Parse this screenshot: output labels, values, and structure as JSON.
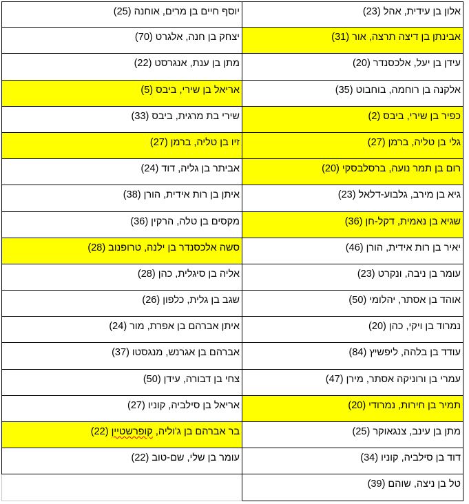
{
  "colors": {
    "highlight": "#ffff00",
    "border": "#000000"
  },
  "rows": [
    {
      "right": {
        "text": "אלון בן עידית, אהל (23)",
        "highlight": false
      },
      "left": {
        "text": "יוסף חיים בן מרים, אוחנה (25)",
        "highlight": false
      }
    },
    {
      "right": {
        "text": "אבינתן בן דיצה תרצה, אור (31)",
        "highlight": true
      },
      "left": {
        "text": "יצחק בן חנה, אלגרט (70)",
        "highlight": false
      }
    },
    {
      "right": {
        "text": "עידן בן יעל, אלכסנדר (20)",
        "highlight": false
      },
      "left": {
        "text": "מתן בן ענת, אנגרסט (22)",
        "highlight": false
      }
    },
    {
      "right": {
        "text": "אלקנה בן רוחמה, בוחבוט (35)",
        "highlight": false
      },
      "left": {
        "text": "אריאל בן שירי, ביבס (5)",
        "highlight": true
      }
    },
    {
      "right": {
        "text": "כפיר בן שירי, ביבס (2)",
        "highlight": true
      },
      "left": {
        "text": "שירי בת מרגית, ביבס (33)",
        "highlight": false
      }
    },
    {
      "right": {
        "text": "גלי בן טליה, ברמן (27)",
        "highlight": true
      },
      "left": {
        "text": "זיו בן טליה, ברמן (27)",
        "highlight": true
      }
    },
    {
      "right": {
        "text": "רום בן תמר נועה, ברסלבסקי (20)",
        "highlight": true
      },
      "left": {
        "text": "אביתר בן גליה, דוד (24)",
        "highlight": false
      }
    },
    {
      "right": {
        "text": "גיא בן מירב, גלבוע-דלאל (23)",
        "highlight": false
      },
      "left": {
        "text": "איתן בן רות אידית, הורן (38)",
        "highlight": false
      }
    },
    {
      "right": {
        "text": "שגיא בן נאמית, דקל-חן (36)",
        "highlight": true
      },
      "left": {
        "text": "מקסים בן טלה, הרקין (36)",
        "highlight": false
      }
    },
    {
      "right": {
        "text": "יאיר בן רות אידית, הורן (46)",
        "highlight": false
      },
      "left": {
        "text": "סשה אלכסנדר בן ילנה, טרופנוב (28)",
        "highlight": true
      }
    },
    {
      "right": {
        "text": "עומר בן ניבה, ונקרט (23)",
        "highlight": false
      },
      "left": {
        "text": "אליה בן סיגלית, כהן (28)",
        "highlight": false
      }
    },
    {
      "right": {
        "text": "אוהד בן אסתר, יהלומי (50)",
        "highlight": false
      },
      "left": {
        "text": "שגב בן גלית, כלפון (26)",
        "highlight": false
      }
    },
    {
      "right": {
        "text": "נמרוד בן ויקי, כהן (20)",
        "highlight": false
      },
      "left": {
        "text": "איתן אברהם בן אפרת, מור (24)",
        "highlight": false
      }
    },
    {
      "right": {
        "text": "עודד בן בלהה, ליפשיץ (84)",
        "highlight": false
      },
      "left": {
        "text": "אברהם בן אגרנש, מנגסטו (37)",
        "highlight": false
      }
    },
    {
      "right": {
        "text": "עמרי בן ורוניקה אסתר, מירן (47)",
        "highlight": false
      },
      "left": {
        "text": "צחי בן דבורה, עידן (50)",
        "highlight": false
      }
    },
    {
      "right": {
        "text": "תמיר בן חירות, נמרודי (20)",
        "highlight": true
      },
      "left": {
        "text": "אריאל בן סילביה, קוניו (27)",
        "highlight": false
      }
    },
    {
      "right": {
        "text": "מתן בן עינב, צנגאוקר (25)",
        "highlight": false
      },
      "left": {
        "before": "בר אברהם בן ג'וליה, ",
        "misspelled": "קופרשטיין",
        "after": " (22)",
        "highlight": true
      }
    },
    {
      "right": {
        "text": "דוד בן סילביה, קוניו (34)",
        "highlight": false
      },
      "left": {
        "text": "עומר בן שלי, שם-טוב (22)",
        "highlight": false
      }
    },
    {
      "right": {
        "text": "טל בן ניצה, שוהם (39)",
        "highlight": false
      },
      "left": {
        "text": "",
        "highlight": false,
        "empty": true
      }
    }
  ]
}
